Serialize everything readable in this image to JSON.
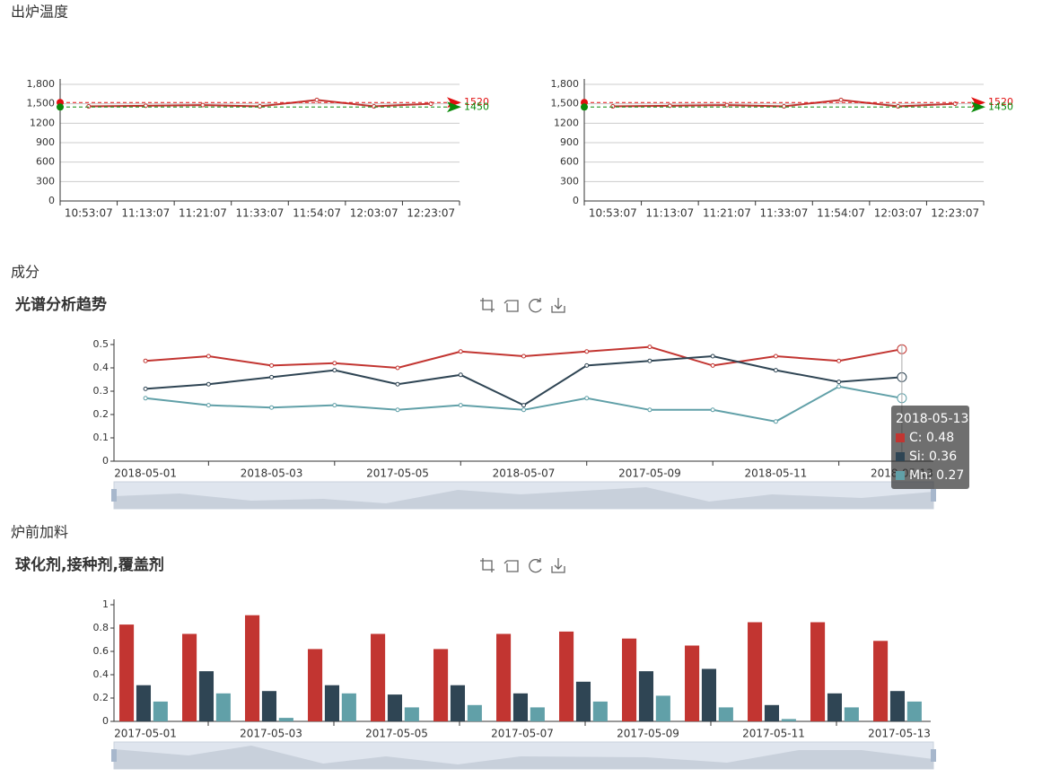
{
  "headings": [
    "出炉温度",
    "成分",
    "炉前加料"
  ],
  "chart_data": [
    {
      "type": "line",
      "categories": [
        "10:53:07",
        "11:13:07",
        "11:21:07",
        "11:33:07",
        "11:54:07",
        "12:03:07",
        "12:23:07"
      ],
      "series": [
        {
          "color": "#c23531",
          "values": [
            1460,
            1470,
            1480,
            1460,
            1560,
            1460,
            1500
          ]
        }
      ],
      "ylim": [
        0,
        1800
      ],
      "yticks": [
        0,
        300,
        600,
        900,
        1200,
        {
          "value": 1500,
          "label": "1,500"
        },
        {
          "value": 1800,
          "label": "1,800"
        }
      ],
      "grid": true,
      "mark_lines": [
        {
          "value": 1520,
          "color": "#e01010"
        },
        {
          "value": 1450,
          "color": "#0a8a0a"
        }
      ]
    },
    {
      "type": "line",
      "categories": [
        "10:53:07",
        "11:13:07",
        "11:21:07",
        "11:33:07",
        "11:54:07",
        "12:03:07",
        "12:23:07"
      ],
      "series": [
        {
          "color": "#c23531",
          "values": [
            1460,
            1470,
            1480,
            1460,
            1560,
            1460,
            1500
          ]
        }
      ],
      "ylim": [
        0,
        1800
      ],
      "yticks": [
        0,
        300,
        600,
        900,
        1200,
        {
          "value": 1500,
          "label": "1,500"
        },
        {
          "value": 1800,
          "label": "1,800"
        }
      ],
      "grid": true,
      "mark_lines": [
        {
          "value": 1520,
          "color": "#e01010"
        },
        {
          "value": 1450,
          "color": "#0a8a0a"
        }
      ]
    },
    {
      "type": "line",
      "title": "光谱分析趋势",
      "categories": [
        "2018-05-01",
        null,
        "2018-05-03",
        null,
        "2017-05-05",
        null,
        "2018-05-07",
        null,
        "2017-05-09",
        null,
        "2018-05-11",
        null,
        "2018-05-13"
      ],
      "series": [
        {
          "name": "C",
          "color": "#c23531",
          "values": [
            0.43,
            0.45,
            0.41,
            0.42,
            0.4,
            0.47,
            0.45,
            0.47,
            0.49,
            0.41,
            0.45,
            0.43,
            0.48
          ]
        },
        {
          "name": "Si",
          "color": "#2f4554",
          "values": [
            0.31,
            0.33,
            0.36,
            0.39,
            0.33,
            0.37,
            0.24,
            0.41,
            0.43,
            0.45,
            0.39,
            0.34,
            0.36
          ]
        },
        {
          "name": "Mn",
          "color": "#61a0a8",
          "values": [
            0.27,
            0.24,
            0.23,
            0.24,
            0.22,
            0.24,
            0.22,
            0.27,
            0.22,
            0.22,
            0.17,
            0.32,
            0.27
          ]
        }
      ],
      "ylim": [
        0,
        0.5
      ],
      "yticks": [
        0,
        0.1,
        0.2,
        0.3,
        0.4,
        0.5
      ],
      "grid": false
    },
    {
      "type": "bar",
      "title": "球化剂,接种剂,覆盖剂",
      "categories": [
        "2017-05-01",
        null,
        "2017-05-03",
        null,
        "2017-05-05",
        null,
        "2017-05-07",
        null,
        "2017-05-09",
        null,
        "2017-05-11",
        null,
        "2017-05-13"
      ],
      "series": [
        {
          "color": "#c23531",
          "values": [
            0.83,
            0.75,
            0.91,
            0.62,
            0.75,
            0.62,
            0.75,
            0.77,
            0.71,
            0.65,
            0.85,
            0.85,
            0.69
          ]
        },
        {
          "color": "#2f4554",
          "values": [
            0.31,
            0.43,
            0.26,
            0.31,
            0.23,
            0.31,
            0.24,
            0.34,
            0.43,
            0.45,
            0.14,
            0.24,
            0.26
          ]
        },
        {
          "color": "#61a0a8",
          "values": [
            0.17,
            0.24,
            0.03,
            0.24,
            0.12,
            0.14,
            0.12,
            0.17,
            0.22,
            0.12,
            0.02,
            0.12,
            0.17
          ]
        }
      ],
      "ylim": [
        0,
        1
      ],
      "yticks": [
        0,
        0.2,
        0.4,
        0.6,
        0.8,
        1
      ],
      "grid": false
    }
  ]
}
